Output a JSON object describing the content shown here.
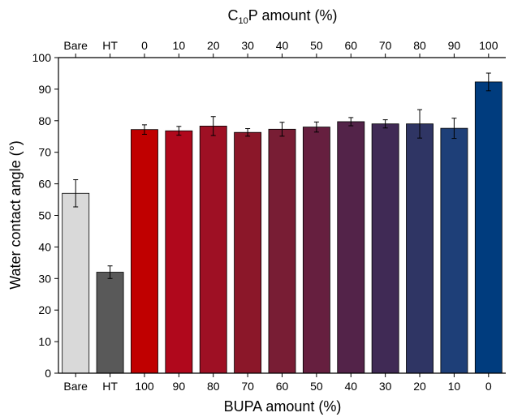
{
  "chart_data": {
    "type": "bar",
    "title": "",
    "top_axis_label_prefix": "C",
    "top_axis_label_subscript": "10",
    "top_axis_label_suffix": "P amount (%)",
    "xlabel": "BUPA amount (%)",
    "ylabel": "Water contact angle (°)",
    "bottom_categories": [
      "Bare",
      "HT",
      "100",
      "90",
      "80",
      "70",
      "60",
      "50",
      "40",
      "30",
      "20",
      "10",
      "0"
    ],
    "top_categories": [
      "Bare",
      "HT",
      "0",
      "10",
      "20",
      "30",
      "40",
      "50",
      "60",
      "70",
      "80",
      "90",
      "100"
    ],
    "values": [
      57.0,
      32.0,
      77.2,
      76.8,
      78.3,
      76.3,
      77.3,
      78.0,
      79.7,
      79.0,
      79.0,
      77.6,
      92.3
    ],
    "errors": [
      4.3,
      2.0,
      1.5,
      1.4,
      3.0,
      1.2,
      2.2,
      1.6,
      1.3,
      1.3,
      4.5,
      3.2,
      2.8
    ],
    "colors": [
      "#d9d9d9",
      "#595959",
      "#c00000",
      "#b0081c",
      "#9e1024",
      "#8b1729",
      "#781d34",
      "#661f3f",
      "#532349",
      "#402a55",
      "#2f3564",
      "#1e3f78",
      "#003c7e"
    ],
    "ylim": [
      0,
      100
    ],
    "yticks": [
      0,
      10,
      20,
      30,
      40,
      50,
      60,
      70,
      80,
      90,
      100
    ],
    "grid": false,
    "legend": "none"
  }
}
